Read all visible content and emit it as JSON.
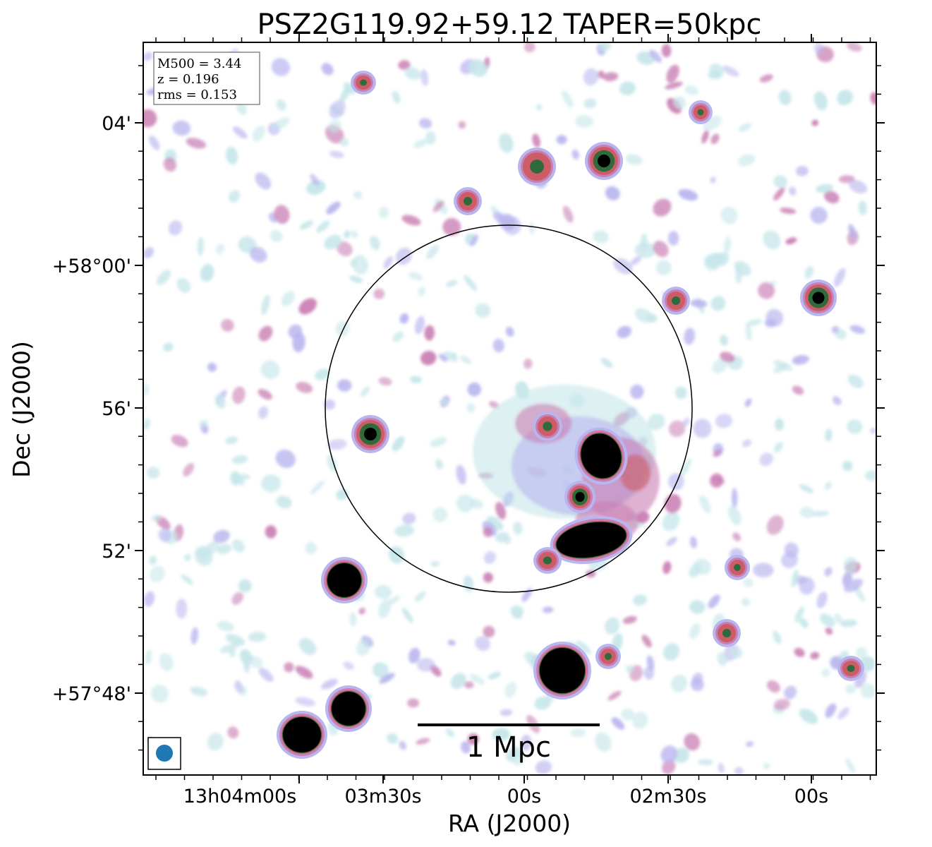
{
  "title": "PSZ2G119.92+59.12 TAPER=50kpc",
  "xlabel": "RA (J2000)",
  "ylabel": "Dec (J2000)",
  "x_ticks": [
    "13h04m00s",
    "03m30s",
    "00s",
    "02m30s",
    "00s"
  ],
  "y_ticks": [
    "04'",
    "+58°00'",
    "56'",
    "52'",
    "+57°48'"
  ],
  "info": {
    "m500": "M500 = 3.44",
    "z": "z = 0.196",
    "rms": "rms = 0.153"
  },
  "scalebar_label": "1 Mpc",
  "colors": {
    "faint": "#c6e6ea",
    "low": "#b9b6ee",
    "mid": "#c97fb4",
    "high": "#cc5c66",
    "core": "#2e6a3c",
    "saturated": "#000000",
    "beam": "#1f77b4"
  }
}
